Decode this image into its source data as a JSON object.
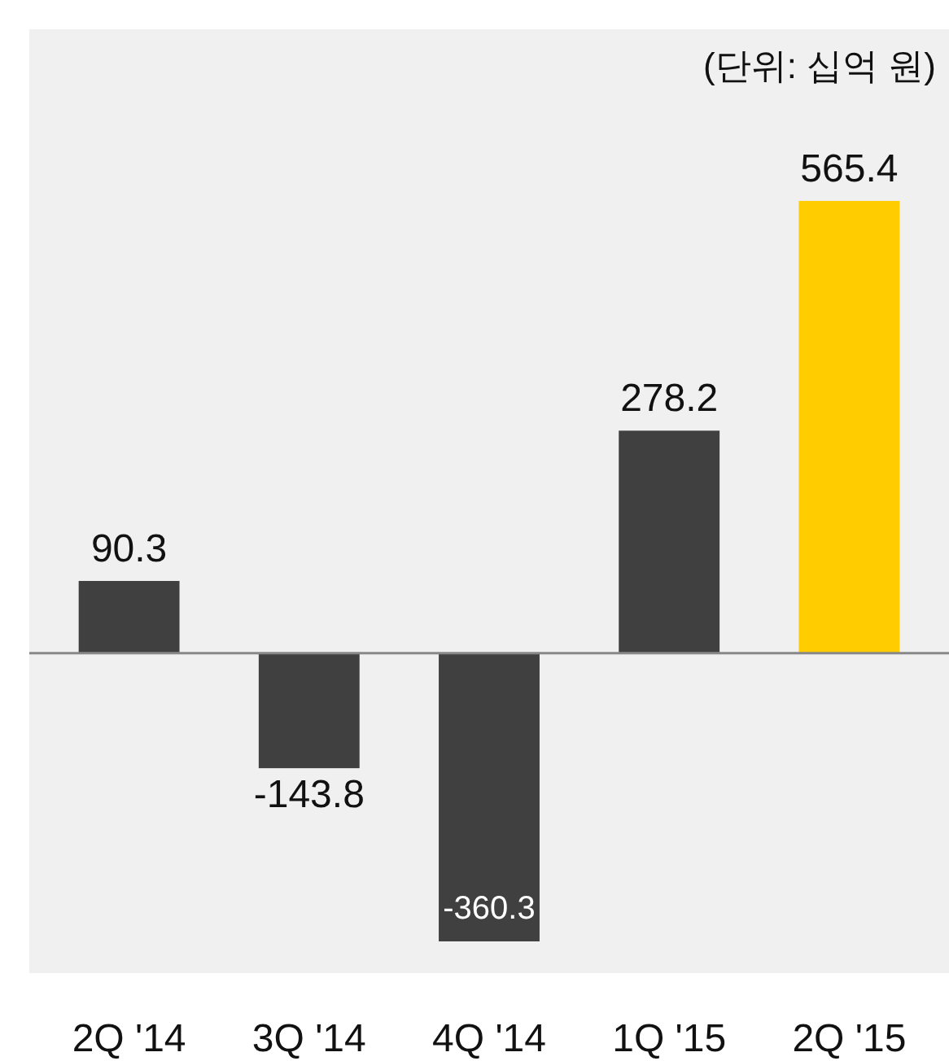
{
  "chart_data": {
    "type": "bar",
    "subtitle": "(단위: 십억 원)",
    "categories": [
      "2Q '14",
      "3Q '14",
      "4Q '14",
      "1Q '15",
      "2Q '15"
    ],
    "values": [
      90.3,
      -143.8,
      -360.3,
      278.2,
      565.4
    ],
    "colors": [
      "#404040",
      "#404040",
      "#404040",
      "#404040",
      "#ffcc00"
    ],
    "ylim": [
      -400,
      780
    ],
    "tick_labels": "x",
    "data_labels": true
  }
}
